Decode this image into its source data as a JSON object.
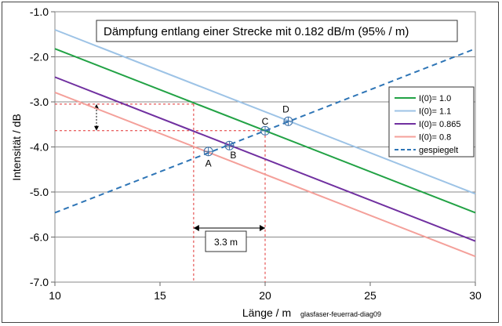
{
  "chart_data": {
    "type": "line",
    "title": "Dämpfung entlang einer Strecke mit 0.182 dB/m  (95% / m)",
    "xlabel": "Länge / m",
    "ylabel": "Intensität / dB",
    "footnote": "glasfaser-feuerrad-diag09",
    "xlim": [
      10,
      30
    ],
    "ylim": [
      -7.0,
      -1.0
    ],
    "xticks": [
      10,
      15,
      20,
      25,
      30
    ],
    "yticks": [
      -1.0,
      -2.0,
      -3.0,
      -4.0,
      -5.0,
      -6.0,
      -7.0
    ],
    "ytick_labels": [
      "-1.0",
      "-2.0",
      "-3.0",
      "-4.0",
      "-5.0",
      "-6.0",
      "-7.0"
    ],
    "xtick_labels": [
      "10",
      "15",
      "20",
      "25",
      "30"
    ],
    "grid": "horizontal",
    "legend_position": "right",
    "series": [
      {
        "name": "I(0)= 1.0",
        "color": "#22a245",
        "dash": false,
        "x": [
          10,
          30
        ],
        "y": [
          -1.82,
          -5.46
        ]
      },
      {
        "name": "I(0)= 1.1",
        "color": "#9dc3e6",
        "dash": false,
        "x": [
          10,
          30
        ],
        "y": [
          -1.4,
          -5.04
        ]
      },
      {
        "name": "I(0)= 0.865",
        "color": "#7030a0",
        "dash": false,
        "x": [
          10,
          30
        ],
        "y": [
          -2.45,
          -6.09
        ]
      },
      {
        "name": "I(0)= 0.8",
        "color": "#f4a09a",
        "dash": false,
        "x": [
          10,
          30
        ],
        "y": [
          -2.79,
          -6.43
        ]
      },
      {
        "name": "gespiegelt",
        "color": "#2e75b6",
        "dash": true,
        "x": [
          10,
          30
        ],
        "y": [
          -5.46,
          -1.82
        ]
      }
    ],
    "points": [
      {
        "label": "A",
        "x": 17.3,
        "y": -4.1
      },
      {
        "label": "B",
        "x": 18.3,
        "y": -3.97
      },
      {
        "label": "C",
        "x": 20.0,
        "y": -3.64
      },
      {
        "label": "D",
        "x": 21.1,
        "y": -3.43
      }
    ],
    "guides": {
      "color": "#e03030",
      "vertical_x": [
        16.6,
        20.0
      ],
      "horizontal_y": [
        -3.05,
        -3.64
      ],
      "span_label": "3.3 m"
    }
  }
}
